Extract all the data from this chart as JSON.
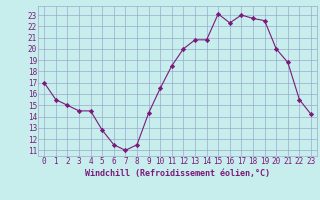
{
  "x": [
    0,
    1,
    2,
    3,
    4,
    5,
    6,
    7,
    8,
    9,
    10,
    11,
    12,
    13,
    14,
    15,
    16,
    17,
    18,
    19,
    20,
    21,
    22,
    23
  ],
  "y": [
    17,
    15.5,
    15,
    14.5,
    14.5,
    12.8,
    11.5,
    11,
    11.5,
    14.3,
    16.5,
    18.5,
    20,
    20.8,
    20.8,
    23.1,
    22.3,
    23.0,
    22.7,
    22.5,
    20.0,
    18.8,
    15.5,
    14.2
  ],
  "line_color": "#7B1A7B",
  "marker": "D",
  "marker_size": 2.2,
  "bg_color": "#c8eded",
  "grid_color": "#9aabcc",
  "xlabel": "Windchill (Refroidissement éolien,°C)",
  "xlabel_fontsize": 6.0,
  "tick_fontsize": 5.5,
  "ylim": [
    10.5,
    23.8
  ],
  "yticks": [
    11,
    12,
    13,
    14,
    15,
    16,
    17,
    18,
    19,
    20,
    21,
    22,
    23
  ],
  "xticks": [
    0,
    1,
    2,
    3,
    4,
    5,
    6,
    7,
    8,
    9,
    10,
    11,
    12,
    13,
    14,
    15,
    16,
    17,
    18,
    19,
    20,
    21,
    22,
    23
  ],
  "xlim": [
    -0.5,
    23.5
  ]
}
